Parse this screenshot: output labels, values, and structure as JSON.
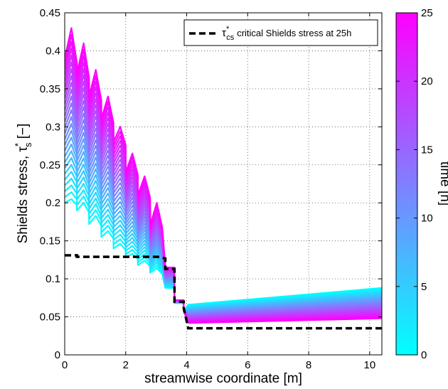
{
  "chart_data": {
    "type": "line",
    "xlabel": "streamwise coordinate [m]",
    "ylabel_prefix": "Shields stress, ",
    "ylabel_sym": "τ",
    "ylabel_sup": "*",
    "ylabel_sub": "s",
    "ylabel_suffix": " [−]",
    "xlim": [
      0,
      10.4
    ],
    "ylim": [
      0,
      0.45
    ],
    "xticks": [
      0,
      2,
      4,
      6,
      8,
      10
    ],
    "yticks": [
      0,
      0.05,
      0.1,
      0.15,
      0.2,
      0.25,
      0.3,
      0.35,
      0.4,
      0.45
    ],
    "grid": true,
    "legend": {
      "placement": "top-right",
      "symbol": "τ",
      "sup": "*",
      "sub": "cs",
      "text": "critical Shields stress at 25h"
    },
    "colorbar": {
      "label": "time [h]",
      "range": [
        0,
        25
      ],
      "ticks": [
        0,
        5,
        10,
        15,
        20,
        25
      ],
      "color_low": "#00ffff",
      "color_high": "#ff00ff"
    },
    "critical_series": {
      "name": "critical Shields stress at 25h",
      "color": "#000000",
      "dash": true,
      "points": [
        [
          0,
          0.131
        ],
        [
          0.4,
          0.131
        ],
        [
          0.4,
          0.129
        ],
        [
          3.05,
          0.129
        ],
        [
          3.3,
          0.127
        ],
        [
          3.3,
          0.113
        ],
        [
          3.6,
          0.113
        ],
        [
          3.6,
          0.07
        ],
        [
          3.9,
          0.07
        ],
        [
          3.9,
          0.062
        ],
        [
          4.05,
          0.035
        ],
        [
          10.4,
          0.035
        ]
      ]
    },
    "time_series": {
      "time_steps": [
        0,
        1,
        2,
        3,
        4,
        5,
        6,
        7,
        8,
        9,
        10,
        11,
        12,
        13,
        14,
        15,
        16,
        17,
        18,
        19,
        20,
        21,
        22,
        23,
        24,
        25
      ],
      "first": {
        "time": 0,
        "peaks": [
          0.205,
          0.2,
          0.183,
          0.163,
          0.146,
          0.133,
          0.124,
          0.114
        ],
        "valleys": [
          0.2,
          0.19,
          0.172,
          0.155,
          0.14,
          0.128,
          0.118,
          0.108
        ],
        "step_values": [
          0.088,
          0.068,
          0.058
        ],
        "tail": [
          0.066,
          0.088
        ]
      },
      "last": {
        "time": 25,
        "peaks": [
          0.43,
          0.41,
          0.375,
          0.34,
          0.3,
          0.265,
          0.235,
          0.2
        ],
        "valleys": [
          0.39,
          0.37,
          0.34,
          0.31,
          0.28,
          0.24,
          0.21,
          0.17
        ],
        "step_values": [
          0.115,
          0.072,
          0.058
        ],
        "tail": [
          0.042,
          0.048
        ]
      }
    }
  }
}
